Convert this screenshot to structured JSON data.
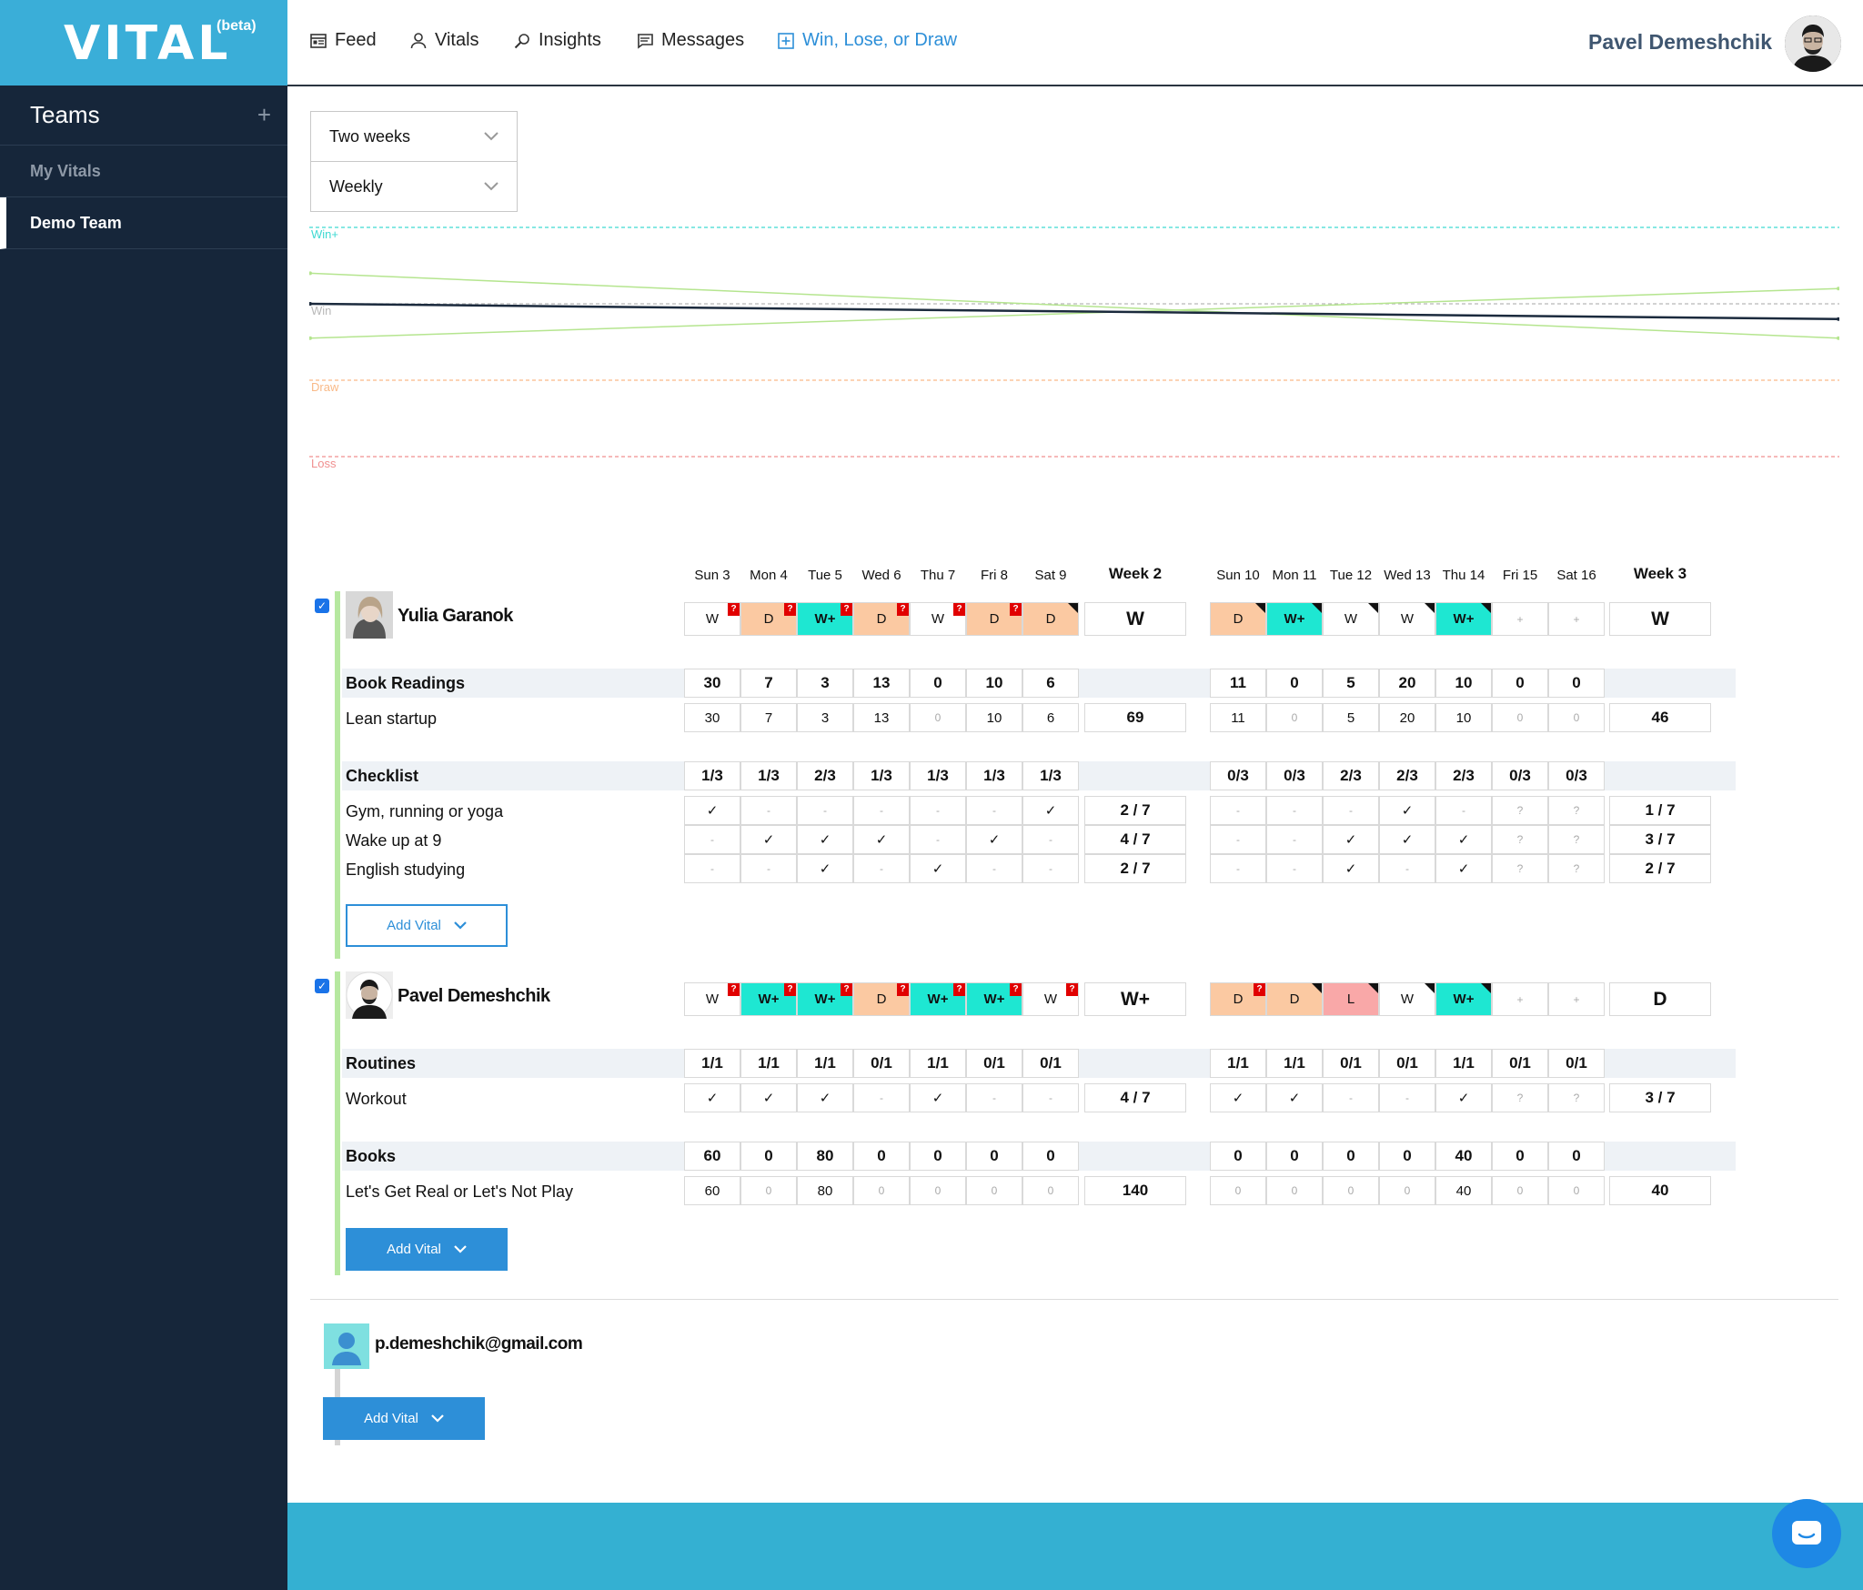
{
  "brand": {
    "logo": "VITAL",
    "beta": "(beta)"
  },
  "sidebar": {
    "title": "Teams",
    "add_icon": "+",
    "items": [
      {
        "label": "My Vitals",
        "active": false
      },
      {
        "label": "Demo Team",
        "active": true
      }
    ]
  },
  "nav": {
    "items": [
      {
        "label": "Feed",
        "icon": "feed-icon"
      },
      {
        "label": "Vitals",
        "icon": "user-icon"
      },
      {
        "label": "Insights",
        "icon": "insights-icon"
      },
      {
        "label": "Messages",
        "icon": "messages-icon"
      },
      {
        "label": "Win, Lose, or Draw",
        "icon": "plus-square-icon"
      }
    ],
    "username": "Pavel Demeshchik"
  },
  "filters": {
    "period": "Two weeks",
    "granularity": "Weekly"
  },
  "chart_data": {
    "type": "line",
    "bands": [
      "Win+",
      "Win",
      "Draw",
      "Loss"
    ],
    "band_values": [
      4,
      3,
      2,
      1
    ],
    "band_colors": {
      "Win+": "#3fd9d2",
      "Win": "#b8b8b8",
      "Draw": "#f9b987",
      "Loss": "#f08f8f"
    },
    "x": [
      "Week 2",
      "Week 3"
    ],
    "series": [
      {
        "color": "#b5e58f",
        "values": [
          3.4,
          2.55
        ]
      },
      {
        "color": "#b5e58f",
        "values": [
          2.55,
          3.2
        ]
      },
      {
        "color": "#1b2a3d",
        "values": [
          3.0,
          2.8
        ]
      }
    ],
    "ylim": [
      1,
      4
    ]
  },
  "table": {
    "days_w1": [
      "Sun 3",
      "Mon 4",
      "Tue 5",
      "Wed 6",
      "Thu 7",
      "Fri 8",
      "Sat 9"
    ],
    "week1": "Week 2",
    "days_w2": [
      "Sun 10",
      "Mon 11",
      "Tue 12",
      "Wed 13",
      "Thu 14",
      "Fri 15",
      "Sat 16"
    ],
    "week2": "Week 3"
  },
  "members": [
    {
      "name": "Yulia Garanok",
      "results_w1": [
        {
          "v": "W",
          "t": "",
          "m": "q"
        },
        {
          "v": "D",
          "t": "D",
          "m": "q"
        },
        {
          "v": "W+",
          "t": "Wp",
          "m": "q"
        },
        {
          "v": "D",
          "t": "D",
          "m": "q"
        },
        {
          "v": "W",
          "t": "",
          "m": "q"
        },
        {
          "v": "D",
          "t": "D",
          "m": "q"
        },
        {
          "v": "D",
          "t": "D",
          "m": "tri"
        }
      ],
      "week1_result": "W",
      "results_w2": [
        {
          "v": "D",
          "t": "D",
          "m": "tri"
        },
        {
          "v": "W+",
          "t": "Wp",
          "m": "tri"
        },
        {
          "v": "W",
          "t": "",
          "m": "tri"
        },
        {
          "v": "W",
          "t": "",
          "m": "tri"
        },
        {
          "v": "W+",
          "t": "Wp",
          "m": "tri"
        },
        {
          "v": "+",
          "t": "muted",
          "m": ""
        },
        {
          "v": "+",
          "t": "muted",
          "m": ""
        }
      ],
      "week2_result": "W",
      "groups": [
        {
          "title": "Book Readings",
          "summary_w1": [
            "30",
            "7",
            "3",
            "13",
            "0",
            "10",
            "6"
          ],
          "summary_w2": [
            "11",
            "0",
            "5",
            "20",
            "10",
            "0",
            "0"
          ],
          "rows": [
            {
              "label": "Lean startup",
              "w1": [
                "30",
                "7",
                "3",
                "13",
                "0",
                "10",
                "6"
              ],
              "w1_total": "69",
              "w2": [
                "11",
                "0",
                "5",
                "20",
                "10",
                "0",
                "0"
              ],
              "w2_total": "46"
            }
          ]
        },
        {
          "title": "Checklist",
          "summary_w1": [
            "1/3",
            "1/3",
            "2/3",
            "1/3",
            "1/3",
            "1/3",
            "1/3"
          ],
          "summary_w2": [
            "0/3",
            "0/3",
            "2/3",
            "2/3",
            "2/3",
            "0/3",
            "0/3"
          ],
          "rows": [
            {
              "label": "Gym, running or yoga",
              "w1": [
                "✓",
                "-",
                "-",
                "-",
                "-",
                "-",
                "✓"
              ],
              "w1_total": "2 / 7",
              "w2": [
                "-",
                "-",
                "-",
                "✓",
                "-",
                "?",
                "?"
              ],
              "w2_total": "1 / 7"
            },
            {
              "label": "Wake up at 9",
              "w1": [
                "-",
                "✓",
                "✓",
                "✓",
                "-",
                "✓",
                "-"
              ],
              "w1_total": "4 / 7",
              "w2": [
                "-",
                "-",
                "✓",
                "✓",
                "✓",
                "?",
                "?"
              ],
              "w2_total": "3 / 7"
            },
            {
              "label": "English studying",
              "w1": [
                "-",
                "-",
                "✓",
                "-",
                "✓",
                "-",
                "-"
              ],
              "w1_total": "2 / 7",
              "w2": [
                "-",
                "-",
                "✓",
                "-",
                "✓",
                "?",
                "?"
              ],
              "w2_total": "2 / 7"
            }
          ]
        }
      ],
      "add_vital": "Add Vital"
    },
    {
      "name": "Pavel Demeshchik",
      "results_w1": [
        {
          "v": "W",
          "t": "",
          "m": "q"
        },
        {
          "v": "W+",
          "t": "Wp",
          "m": "q"
        },
        {
          "v": "W+",
          "t": "Wp",
          "m": "q"
        },
        {
          "v": "D",
          "t": "D",
          "m": "q"
        },
        {
          "v": "W+",
          "t": "Wp",
          "m": "q"
        },
        {
          "v": "W+",
          "t": "Wp",
          "m": "q"
        },
        {
          "v": "W",
          "t": "",
          "m": "q"
        }
      ],
      "week1_result": "W+",
      "results_w2": [
        {
          "v": "D",
          "t": "D",
          "m": "q"
        },
        {
          "v": "D",
          "t": "D",
          "m": "tri"
        },
        {
          "v": "L",
          "t": "L",
          "m": "tri"
        },
        {
          "v": "W",
          "t": "",
          "m": "tri"
        },
        {
          "v": "W+",
          "t": "Wp",
          "m": "tri"
        },
        {
          "v": "+",
          "t": "muted",
          "m": ""
        },
        {
          "v": "+",
          "t": "muted",
          "m": ""
        }
      ],
      "week2_result": "D",
      "groups": [
        {
          "title": "Routines",
          "summary_w1": [
            "1/1",
            "1/1",
            "1/1",
            "0/1",
            "1/1",
            "0/1",
            "0/1"
          ],
          "summary_w2": [
            "1/1",
            "1/1",
            "0/1",
            "0/1",
            "1/1",
            "0/1",
            "0/1"
          ],
          "rows": [
            {
              "label": "Workout",
              "w1": [
                "✓",
                "✓",
                "✓",
                "-",
                "✓",
                "-",
                "-"
              ],
              "w1_total": "4 / 7",
              "w2": [
                "✓",
                "✓",
                "-",
                "-",
                "✓",
                "?",
                "?"
              ],
              "w2_total": "3 / 7"
            }
          ]
        },
        {
          "title": "Books",
          "summary_w1": [
            "60",
            "0",
            "80",
            "0",
            "0",
            "0",
            "0"
          ],
          "summary_w2": [
            "0",
            "0",
            "0",
            "0",
            "40",
            "0",
            "0"
          ],
          "rows": [
            {
              "label": "Let's Get Real or Let's Not Play",
              "w1": [
                "60",
                "0",
                "80",
                "0",
                "0",
                "0",
                "0"
              ],
              "w1_total": "140",
              "w2": [
                "0",
                "0",
                "0",
                "0",
                "40",
                "0",
                "0"
              ],
              "w2_total": "40"
            }
          ]
        }
      ],
      "add_vital": "Add Vital"
    }
  ],
  "invited": {
    "email": "p.demeshchik@gmail.com",
    "add_vital": "Add Vital"
  }
}
